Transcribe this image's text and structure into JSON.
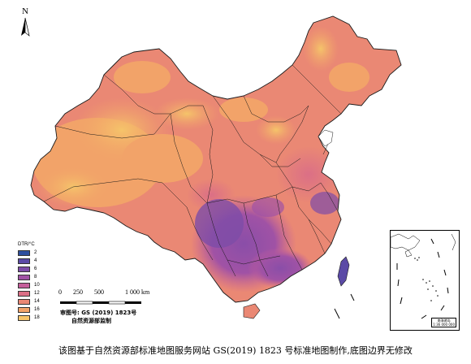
{
  "map": {
    "north_letter": "N",
    "legend": {
      "title": "DTR/°C",
      "items": [
        {
          "label": "2",
          "color": "#2e4f9e"
        },
        {
          "label": "4",
          "color": "#5b4aa6"
        },
        {
          "label": "6",
          "color": "#7d4ca8"
        },
        {
          "label": "8",
          "color": "#a052a5"
        },
        {
          "label": "10",
          "color": "#c45e9a"
        },
        {
          "label": "12",
          "color": "#db6f86"
        },
        {
          "label": "14",
          "color": "#ea8874"
        },
        {
          "label": "16",
          "color": "#f2a369"
        },
        {
          "label": "18",
          "color": "#f5c46a"
        }
      ]
    },
    "scale": {
      "labels": [
        "0",
        "250",
        "500",
        "1 000 km"
      ]
    },
    "approval": {
      "line1": "审图号: GS (2019) 1823号",
      "line2": "自然资源部监制"
    },
    "inset_label": {
      "line1": "南海诸岛",
      "line2": "1:36 000 000"
    }
  },
  "caption": "该图基于自然资源部标准地图服务网站 GS(2019) 1823 号标准地图制作,底图边界无修改"
}
